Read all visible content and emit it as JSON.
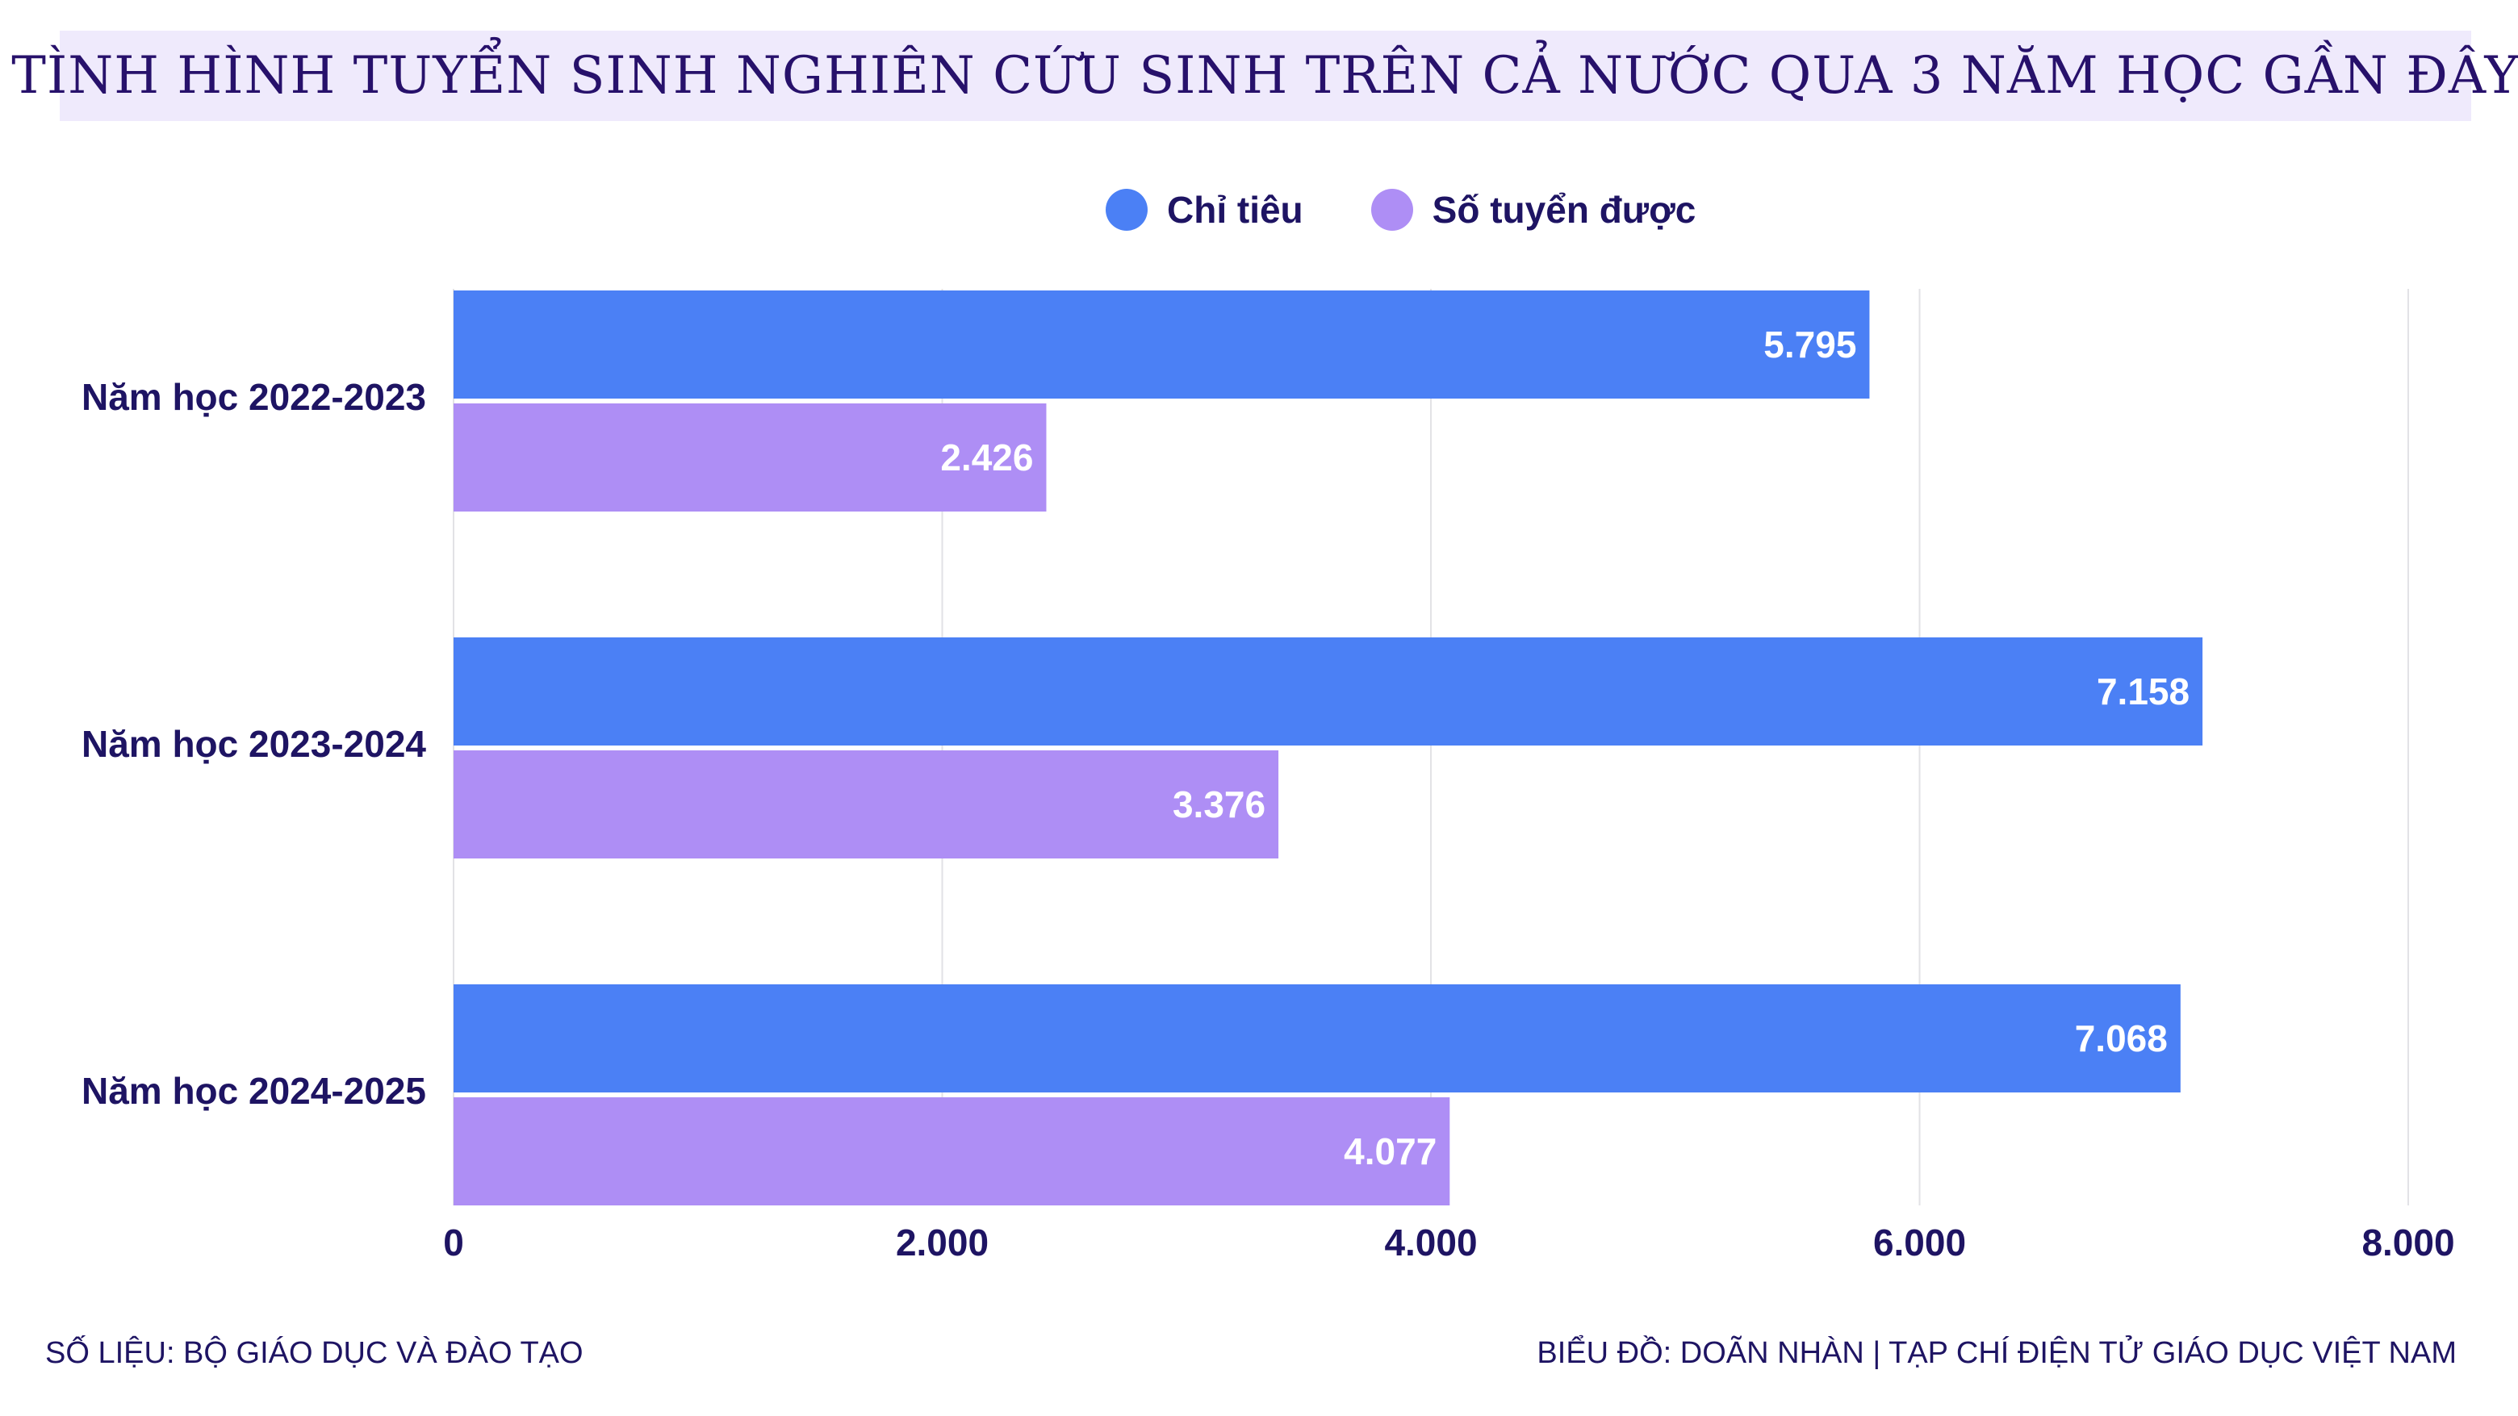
{
  "title": "TÌNH HÌNH TUYỂN SINH NGHIÊN CỨU SINH TRÊN CẢ NƯỚC QUA 3 NĂM HỌC GẦN ĐÂY",
  "footer": {
    "source": "SỐ LIỆU: BỘ GIÁO DỤC VÀ ĐÀO TẠO",
    "credit": "BIỂU ĐỒ: DOÃN NHÀN | TẠP CHÍ ĐIỆN TỬ GIÁO DỤC VIỆT NAM"
  },
  "colors": {
    "quota": "#4b80f5",
    "admitted": "#ae8ef5",
    "text": "#1e1463",
    "title_bg": "#efeafc"
  },
  "chart_data": {
    "type": "bar",
    "orientation": "horizontal",
    "categories": [
      "Năm học 2022-2023",
      "Năm học 2023-2024",
      "Năm học 2024-2025"
    ],
    "series": [
      {
        "name": "Chỉ tiêu",
        "values": [
          5795,
          7158,
          7068
        ],
        "labels": [
          "5.795",
          "7.158",
          "7.068"
        ]
      },
      {
        "name": "Số tuyển được",
        "values": [
          2426,
          3376,
          4077
        ],
        "labels": [
          "2.426",
          "3.376",
          "4.077"
        ]
      }
    ],
    "xlim": [
      0,
      8000
    ],
    "xticks": [
      0,
      2000,
      4000,
      6000,
      8000
    ],
    "xtick_labels": [
      "0",
      "2.000",
      "4.000",
      "6.000",
      "8.000"
    ],
    "grid": true,
    "legend": "top-center"
  }
}
